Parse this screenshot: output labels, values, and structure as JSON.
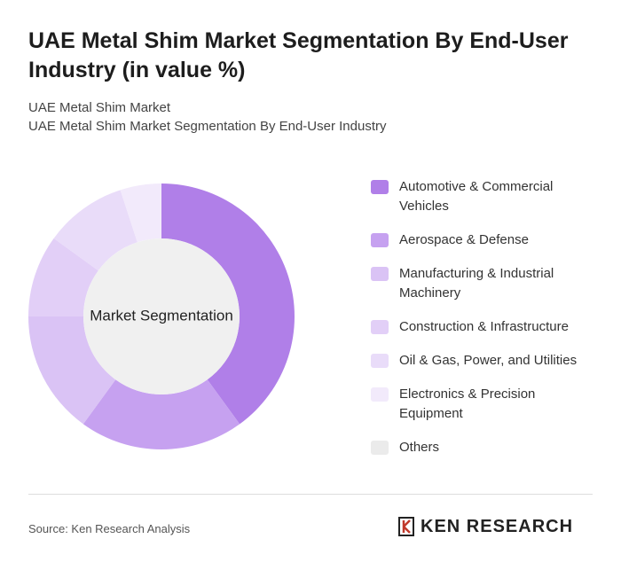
{
  "chart_data": {
    "type": "donut",
    "title": "UAE Metal Shim Market Segmentation By End-User Industry (in value %)",
    "subtitle": [
      "UAE Metal Shim Market",
      "UAE Metal Shim Market Segmentation By End-User Industry"
    ],
    "center_label": "Market Segmentation",
    "categories": [
      "Automotive & Commercial Vehicles",
      "Aerospace & Defense",
      "Manufacturing & Industrial Machinery",
      "Construction & Infrastructure",
      "Oil & Gas, Power, and Utilities",
      "Electronics & Precision Equipment",
      "Others"
    ],
    "values": [
      40,
      20,
      15,
      10,
      10,
      5,
      0
    ],
    "colors": [
      "#b07fe8",
      "#c6a1f0",
      "#dac3f5",
      "#e2cff7",
      "#e9dcf9",
      "#f2eafb",
      "#ebebeb"
    ],
    "source": "Source: Ken Research Analysis",
    "brand": "KEN RESEARCH"
  }
}
